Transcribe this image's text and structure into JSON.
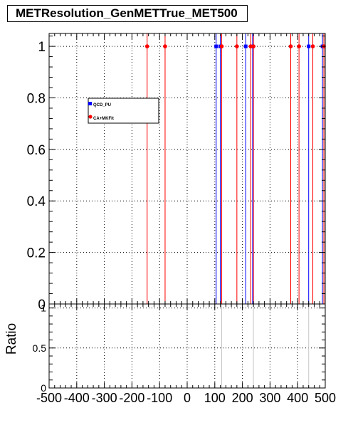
{
  "title": "METResolution_GenMETTrue_MET500",
  "colors": {
    "qcd": "#0000ff",
    "ca": "#ff0000",
    "frame": "#000000",
    "grid": "#000000"
  },
  "chart_data": [
    {
      "type": "scatter",
      "panel": "main",
      "xlim": [
        -500,
        500
      ],
      "ylim": [
        0,
        1.05
      ],
      "x_ticks": [
        -500,
        -400,
        -300,
        -200,
        -100,
        0,
        100,
        200,
        300,
        400,
        500
      ],
      "y_ticks": [
        0,
        0.2,
        0.4,
        0.6,
        0.8,
        1
      ],
      "y_tick_labels": [
        "0",
        "0.2",
        "0.4",
        "0.6",
        "0.8",
        "1"
      ],
      "grid": true,
      "legend_placement": "upper-left-inside",
      "series": [
        {
          "name": "QCD_PU",
          "color": "#0000ff",
          "x": [
            105,
            120,
            212,
            237,
            440,
            490
          ],
          "y": [
            1,
            1,
            1,
            1,
            1,
            1
          ]
        },
        {
          "name": "CA+MKFit",
          "color": "#ff0000",
          "x": [
            -145,
            -80,
            125,
            180,
            230,
            240,
            375,
            405,
            455,
            495
          ],
          "y": [
            1,
            1,
            1,
            1,
            1,
            1,
            1,
            1,
            1,
            1
          ]
        }
      ]
    },
    {
      "type": "scatter",
      "panel": "ratio",
      "ylabel": "Ratio",
      "xlim": [
        -500,
        500
      ],
      "ylim": [
        0,
        1.05
      ],
      "x_ticks": [
        -500,
        -400,
        -300,
        -200,
        -100,
        0,
        100,
        200,
        300,
        400,
        500
      ],
      "x_tick_labels": [
        "-500",
        "-400",
        "-300",
        "-200",
        "-100",
        "0",
        "100",
        "200",
        "300",
        "400",
        "500"
      ],
      "y_ticks": [
        0,
        0.5,
        1
      ],
      "y_tick_labels": [
        "0",
        "0.5",
        "1"
      ],
      "grid": true,
      "series": [
        {
          "color": "#c8c8c8",
          "x": [
            125,
            240,
            440
          ],
          "y": [
            0,
            0,
            0
          ]
        }
      ]
    }
  ]
}
